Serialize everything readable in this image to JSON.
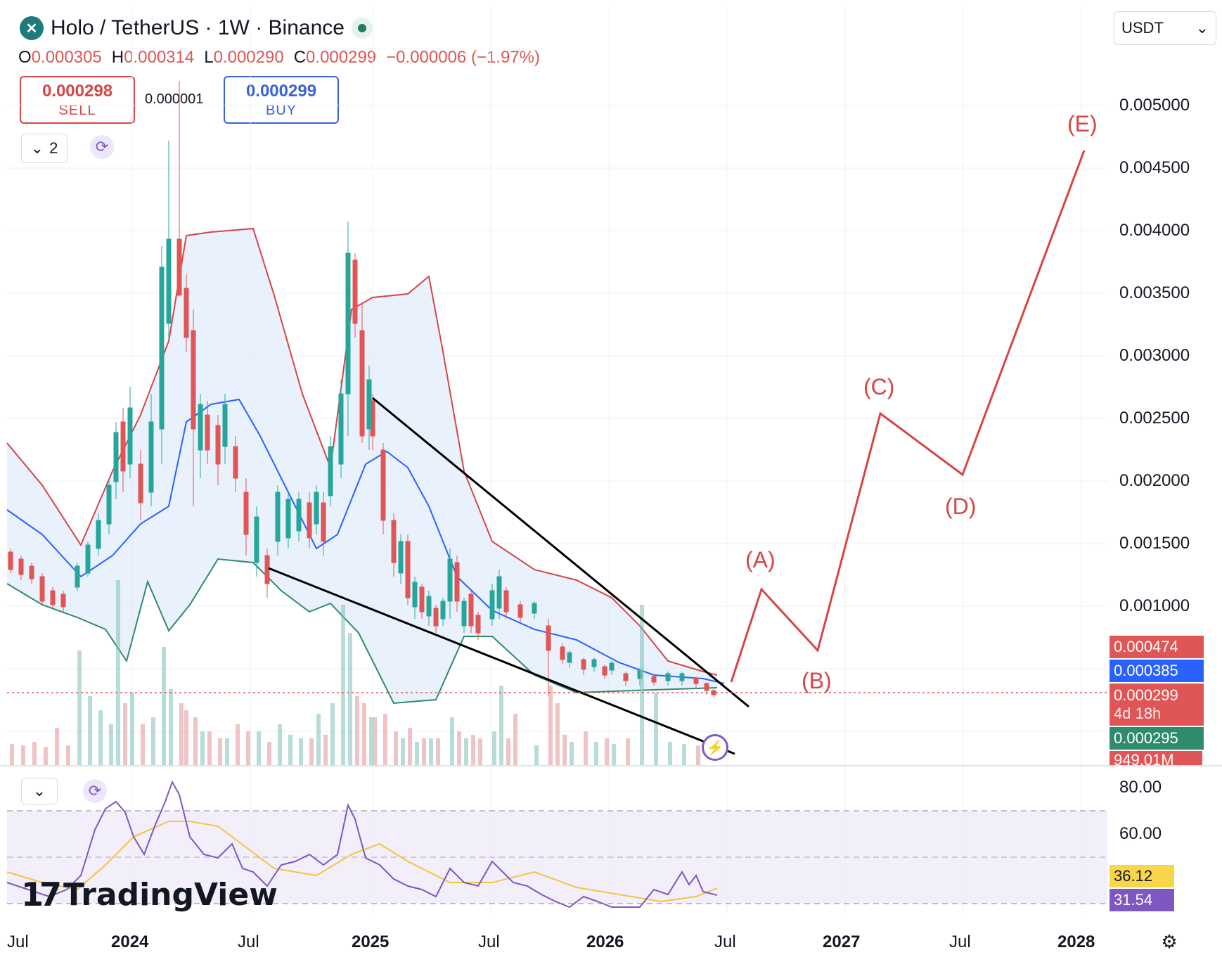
{
  "header": {
    "symbol_title": "Holo / TetherUS · 1W · Binance",
    "logo_glyph": "✕",
    "ohlc": {
      "o_label": "O",
      "o_value": "0.000305",
      "h_label": "H",
      "h_value": "0.000314",
      "l_label": "L",
      "l_value": "0.000290",
      "c_label": "C",
      "c_value": "0.000299",
      "change": "−0.000006 (−1.97%)"
    }
  },
  "trade": {
    "sell_price": "0.000298",
    "sell_label": "SELL",
    "spread": "0.000001",
    "buy_price": "0.000299",
    "buy_label": "BUY"
  },
  "toolbar": {
    "indicator_count": "2",
    "currency": "USDT",
    "currency_arrow": "⌄"
  },
  "price_axis": [
    "0.005000",
    "0.004500",
    "0.004000",
    "0.003500",
    "0.003000",
    "0.002500",
    "0.002000",
    "0.001500",
    "0.001000"
  ],
  "price_tags": {
    "upper_band": "0.000474",
    "basis": "0.000385",
    "last_price": "0.000299",
    "countdown": "4d 18h",
    "lower_band": "0.000295",
    "volume": "949.01M"
  },
  "rsi_axis": [
    "80.00",
    "60.00"
  ],
  "rsi_tags": {
    "rsi_ma": "36.12",
    "rsi": "31.54"
  },
  "time_axis": [
    "Jul",
    "2024",
    "Jul",
    "2025",
    "Jul",
    "2026",
    "Jul",
    "2027",
    "Jul",
    "2028"
  ],
  "waves": [
    "(A)",
    "(B)",
    "(C)",
    "(D)",
    "(E)"
  ],
  "watermark": {
    "mark": "17",
    "word": "TradingView"
  },
  "colors": {
    "up": "#26a69a",
    "down": "#e05555",
    "upper_band": "#d64545",
    "lower_band": "#2e8b6e",
    "basis": "#2962ff",
    "rsi": "#7e57c2",
    "rsi_ma": "#f4c542"
  },
  "chart_data": {
    "type": "candlestick",
    "timeframe": "1W",
    "ylim": [
      0.0002,
      0.0052
    ],
    "approx_closes": [
      {
        "t": "2023-07",
        "close": 0.00145
      },
      {
        "t": "2023-10",
        "close": 0.00105
      },
      {
        "t": "2024-01",
        "close": 0.002
      },
      {
        "t": "2024-03",
        "close": 0.004
      },
      {
        "t": "2024-05",
        "close": 0.0025
      },
      {
        "t": "2024-07",
        "close": 0.0016
      },
      {
        "t": "2024-10",
        "close": 0.0017
      },
      {
        "t": "2024-12",
        "close": 0.0038
      },
      {
        "t": "2025-01",
        "close": 0.0025
      },
      {
        "t": "2025-03",
        "close": 0.0011
      },
      {
        "t": "2025-05",
        "close": 0.00095
      },
      {
        "t": "2025-07",
        "close": 0.001
      },
      {
        "t": "2025-10",
        "close": 0.0006
      },
      {
        "t": "2026-01",
        "close": 0.00045
      },
      {
        "t": "2026-04",
        "close": 0.00045
      },
      {
        "t": "2026-06",
        "close": 0.000299
      }
    ],
    "wave_targets": [
      {
        "label": "(A)",
        "price": 0.00115
      },
      {
        "label": "(B)",
        "price": 0.00065
      },
      {
        "label": "(C)",
        "price": 0.00252
      },
      {
        "label": "(D)",
        "price": 0.00205
      },
      {
        "label": "(E)",
        "price": 0.00462
      }
    ],
    "rsi": {
      "value": 31.54,
      "ma": 36.12,
      "ylim": [
        20,
        85
      ]
    }
  }
}
